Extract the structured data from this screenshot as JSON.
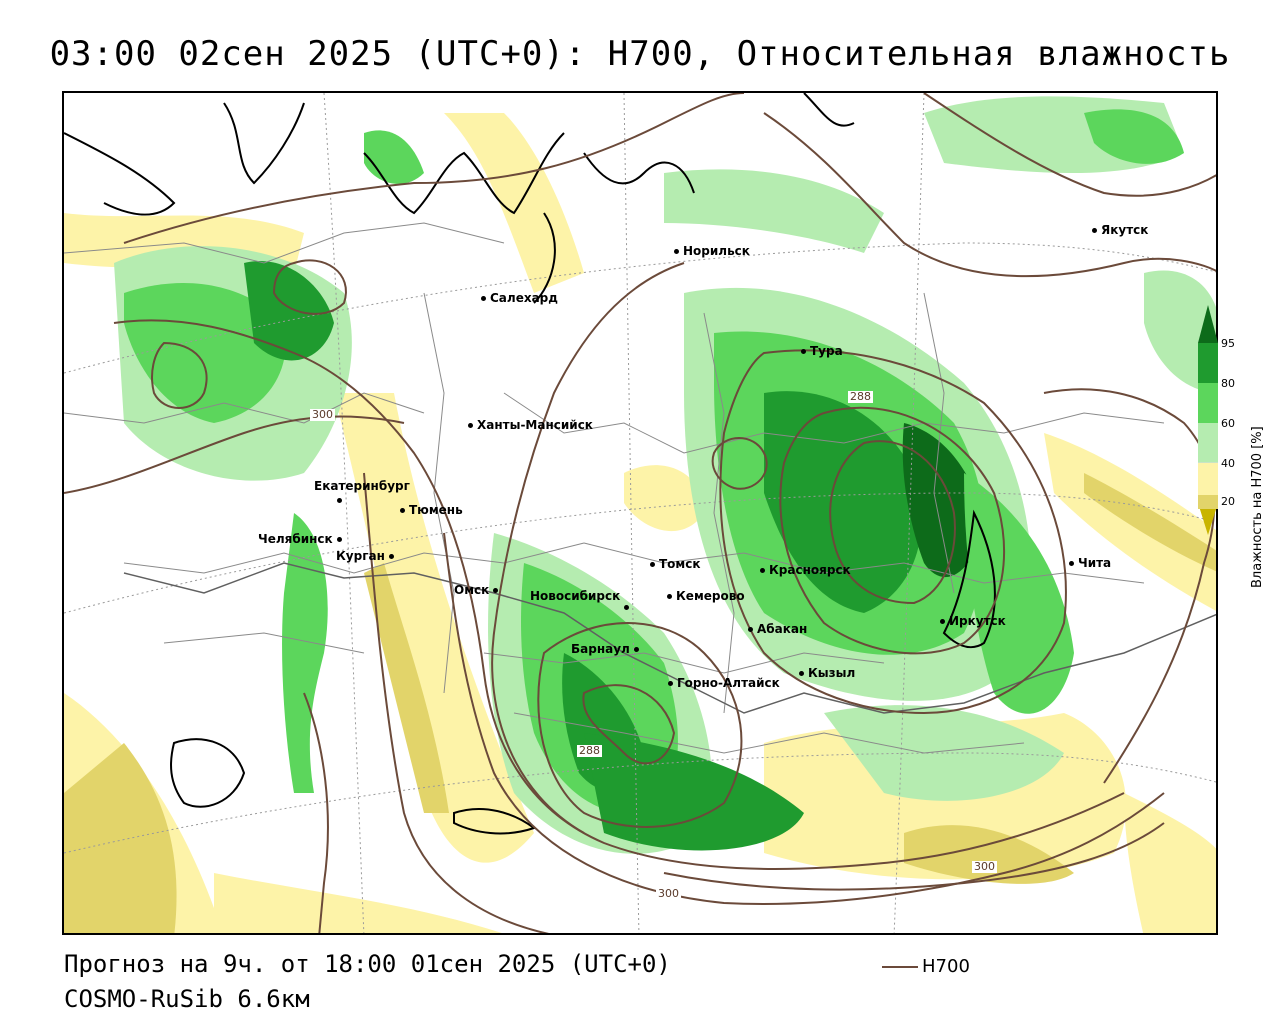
{
  "title": "03:00 02сен 2025 (UTC+0): H700, Относительная влажность",
  "forecast_line": "Прогноз на 9ч. от 18:00 01сен 2025 (UTC+0)",
  "model_line": "COSMO-RuSib 6.6км",
  "contour_key_label": "H700",
  "legend": {
    "title": "Влажность на H700 [%]",
    "ticks": [
      "95",
      "80",
      "60",
      "40",
      "20"
    ],
    "colors": {
      "very_dry": "#c8b400",
      "dry": "#e2d46a",
      "light_dry": "#fdf3a8",
      "neutral": "#ffffff",
      "light_green": "#b5ecb0",
      "green": "#5cd65c",
      "dark_green": "#1f9b2f",
      "darkest_green": "#0d6b1a"
    }
  },
  "contour_labels": [
    "300",
    "288",
    "288",
    "300",
    "300"
  ],
  "cities": [
    "Салехард",
    "Норильск",
    "Якутск",
    "Тура",
    "Ханты-Мансийск",
    "Екатеринбург",
    "Тюмень",
    "Челябинск",
    "Курган",
    "Омск",
    "Новосибирск",
    "Томск",
    "Кемерово",
    "Красноярск",
    "Абакан",
    "Барнаул",
    "Горно-Алтайск",
    "Кызыл",
    "Иркутск",
    "Чита"
  ]
}
